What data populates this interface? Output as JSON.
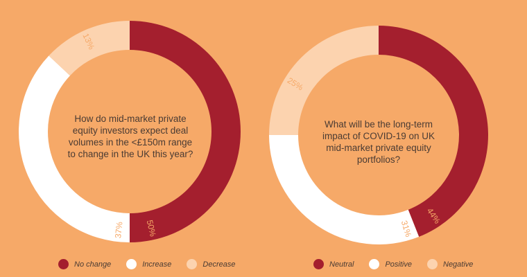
{
  "chart_data": [
    {
      "type": "pie",
      "title": "How do mid-market private equity investors expect deal volumes in the <£150m range to change in the UK this year?",
      "categories": [
        "No change",
        "Increase",
        "Decrease"
      ],
      "values": [
        50,
        37,
        13
      ],
      "labels": [
        "50%",
        "37%",
        "13%"
      ],
      "colors": [
        "#A41F2E",
        "#FFFFFF",
        "#FCD3AF"
      ],
      "label_colors": [
        "#F6A968",
        "#F6A968",
        "#F6A968"
      ],
      "legend": "bottom"
    },
    {
      "type": "pie",
      "title": "What will be the long-term impact of COVID-19 on UK mid-market private equity portfolios?",
      "categories": [
        "Neutral",
        "Positive",
        "Negative"
      ],
      "values": [
        44,
        31,
        25
      ],
      "labels": [
        "44%",
        "31%",
        "25%"
      ],
      "colors": [
        "#A41F2E",
        "#FFFFFF",
        "#FCD3AF"
      ],
      "label_colors": [
        "#F6A968",
        "#F6A968",
        "#F6A968"
      ],
      "legend": "bottom"
    }
  ]
}
